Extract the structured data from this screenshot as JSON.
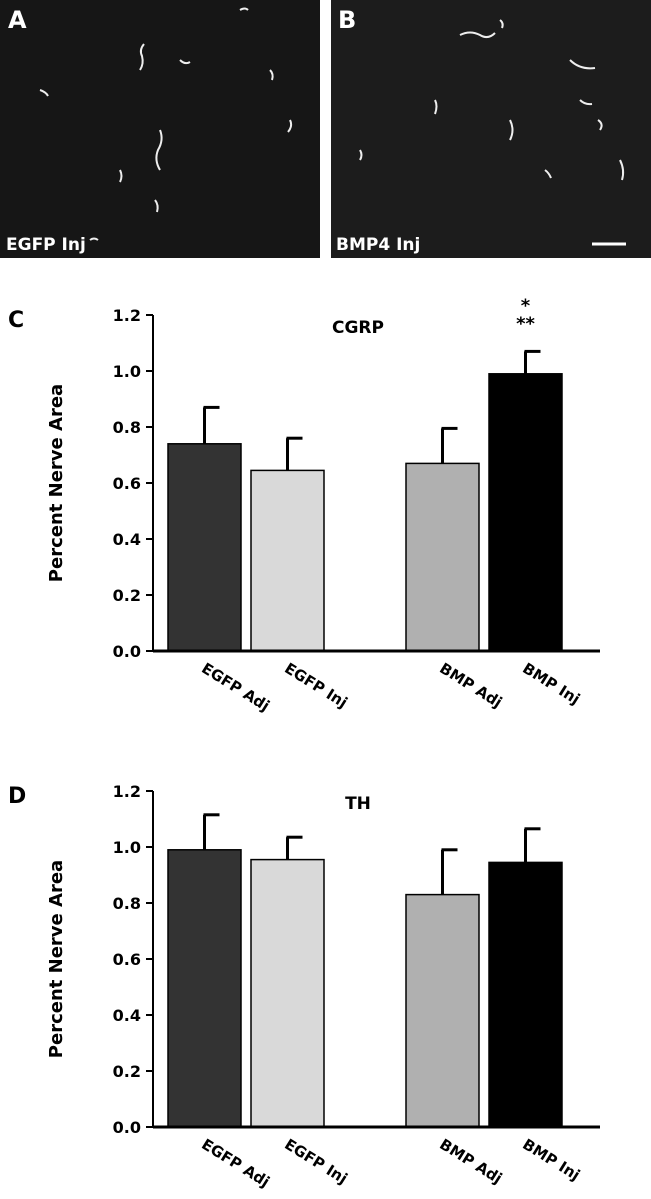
{
  "panels": [
    {
      "label": "A",
      "caption": "EGFP Inj"
    },
    {
      "label": "B",
      "caption": "BMP4 Inj"
    }
  ],
  "chart_data": [
    {
      "type": "bar",
      "panel_label": "C",
      "title": "CGRP",
      "y_label": "Percent Nerve Area",
      "categories": [
        "EGFP Adj",
        "EGFP Inj",
        "BMP Adj",
        "BMP Inj"
      ],
      "values": [
        0.74,
        0.645,
        0.67,
        0.99
      ],
      "errors": [
        0.13,
        0.115,
        0.125,
        0.08
      ],
      "colors": [
        "#333333",
        "#d9d9d9",
        "#b0b0b0",
        "#000000"
      ],
      "annotations": [
        "*",
        "**"
      ],
      "ylim": [
        0,
        1.2
      ],
      "yticks": [
        {
          "value": 0,
          "label": "0.0"
        },
        0.2,
        0.4,
        0.6,
        0.8,
        {
          "value": 1,
          "label": "1.0"
        },
        1.2
      ]
    },
    {
      "type": "bar",
      "panel_label": "D",
      "title": "TH",
      "y_label": "Percent Nerve Area",
      "categories": [
        "EGFP Adj",
        "EGFP Inj",
        "BMP Adj",
        "BMP Inj"
      ],
      "values": [
        0.99,
        0.955,
        0.83,
        0.945
      ],
      "errors": [
        0.125,
        0.08,
        0.16,
        0.12
      ],
      "colors": [
        "#333333",
        "#d9d9d9",
        "#b0b0b0",
        "#000000"
      ],
      "ylim": [
        0,
        1.2
      ],
      "yticks": [
        {
          "value": 0,
          "label": "0.0"
        },
        0.2,
        0.4,
        0.6,
        0.8,
        {
          "value": 1,
          "label": "1.0"
        },
        1.2
      ]
    }
  ]
}
